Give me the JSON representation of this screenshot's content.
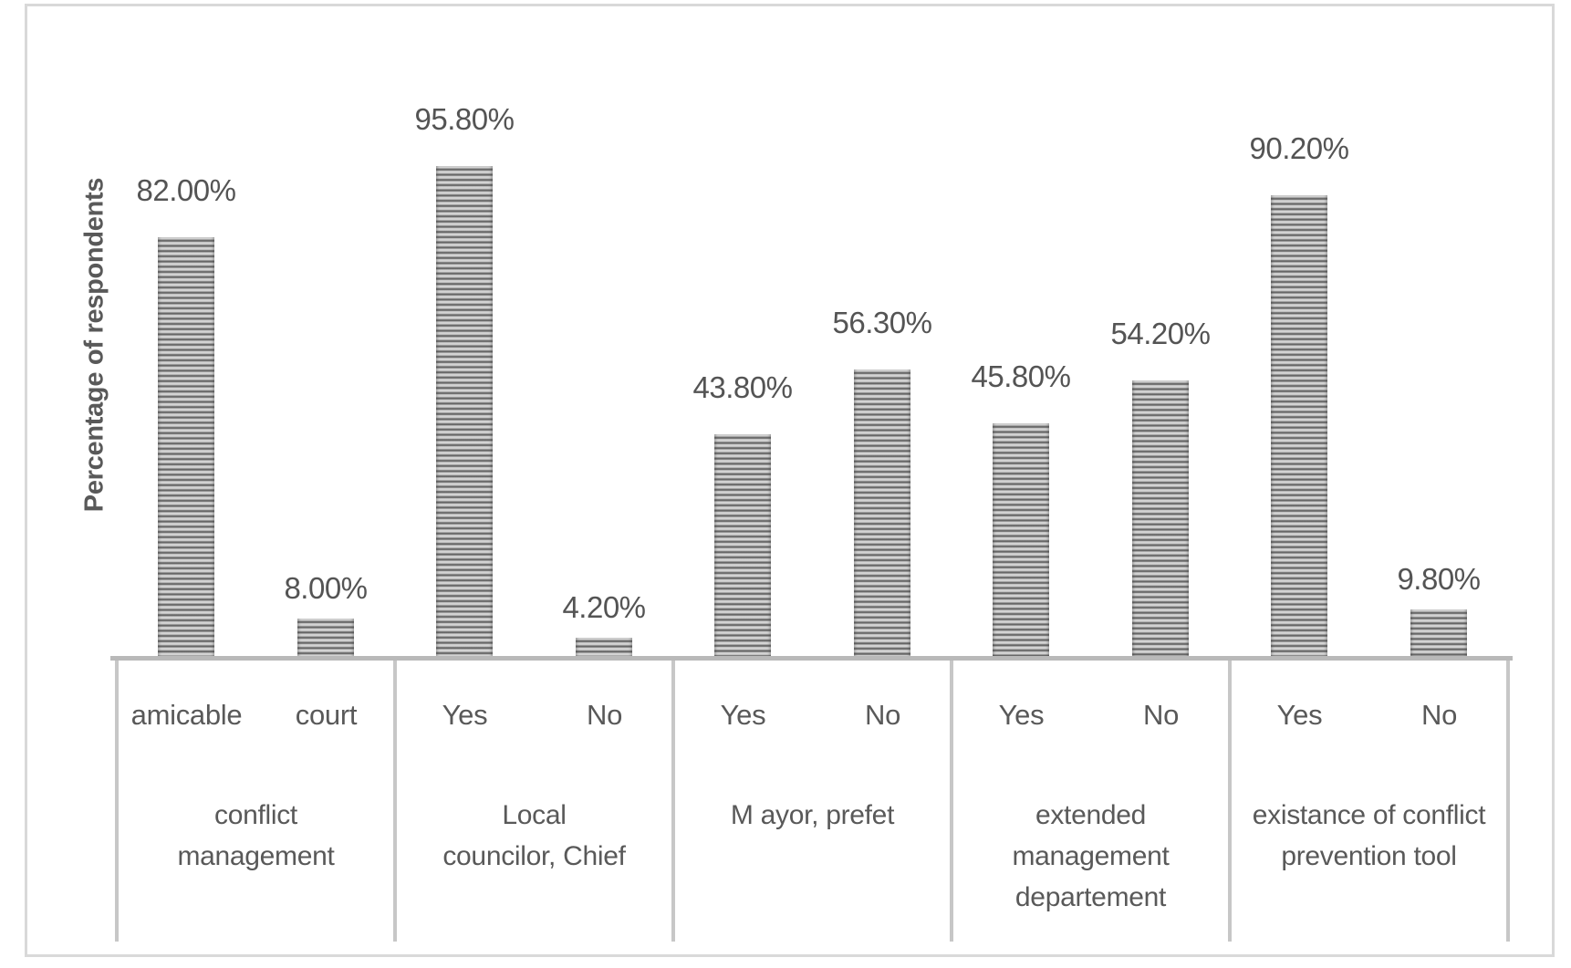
{
  "chart_data": {
    "type": "bar",
    "title": "",
    "ylabel": "Percentage of respondents",
    "xlabel": "",
    "ylim": [
      0,
      100
    ],
    "grid": false,
    "legend": false,
    "value_axis_visible": false,
    "categories": [
      "amicable",
      "court",
      "Yes",
      "No",
      "Yes",
      "No",
      "Yes",
      "No",
      "Yes",
      "No"
    ],
    "values": [
      82.0,
      8.0,
      95.8,
      4.2,
      43.8,
      56.3,
      45.8,
      54.2,
      90.2,
      9.8
    ],
    "groups": [
      {
        "label": "conflict management",
        "label_lines": [
          "conflict",
          "management"
        ],
        "bars": [
          {
            "category": "amicable",
            "value": 82.0,
            "display": "82.00%"
          },
          {
            "category": "court",
            "value": 8.0,
            "display": "8.00%"
          }
        ]
      },
      {
        "label": "Local councilor, Chief",
        "label_lines": [
          "Local",
          "councilor, Chief"
        ],
        "bars": [
          {
            "category": "Yes",
            "value": 95.8,
            "display": "95.80%"
          },
          {
            "category": "No",
            "value": 4.2,
            "display": "4.20%"
          }
        ]
      },
      {
        "label": "M ayor, prefet",
        "label_lines": [
          "M ayor, prefet"
        ],
        "bars": [
          {
            "category": "Yes",
            "value": 43.8,
            "display": "43.80%"
          },
          {
            "category": "No",
            "value": 56.3,
            "display": "56.30%"
          }
        ]
      },
      {
        "label": "extended management departement",
        "label_lines": [
          "extended",
          "management",
          "departement"
        ],
        "bars": [
          {
            "category": "Yes",
            "value": 45.8,
            "display": "45.80%"
          },
          {
            "category": "No",
            "value": 54.2,
            "display": "54.20%"
          }
        ]
      },
      {
        "label": "existance of conflict prevention tool",
        "label_lines": [
          "existance of conflict",
          "prevention tool"
        ],
        "bars": [
          {
            "category": "Yes",
            "value": 90.2,
            "display": "90.20%"
          },
          {
            "category": "No",
            "value": 9.8,
            "display": "9.80%"
          }
        ]
      }
    ],
    "colors": {
      "bar_stripe_light": "#d3d3d3",
      "bar_stripe_dark": "#676767",
      "axis_line": "#b9b9b9",
      "category_box_border": "#c7c7c7",
      "outer_frame": "#d9d9d9",
      "text": "#595959",
      "background": "#ffffff"
    }
  }
}
